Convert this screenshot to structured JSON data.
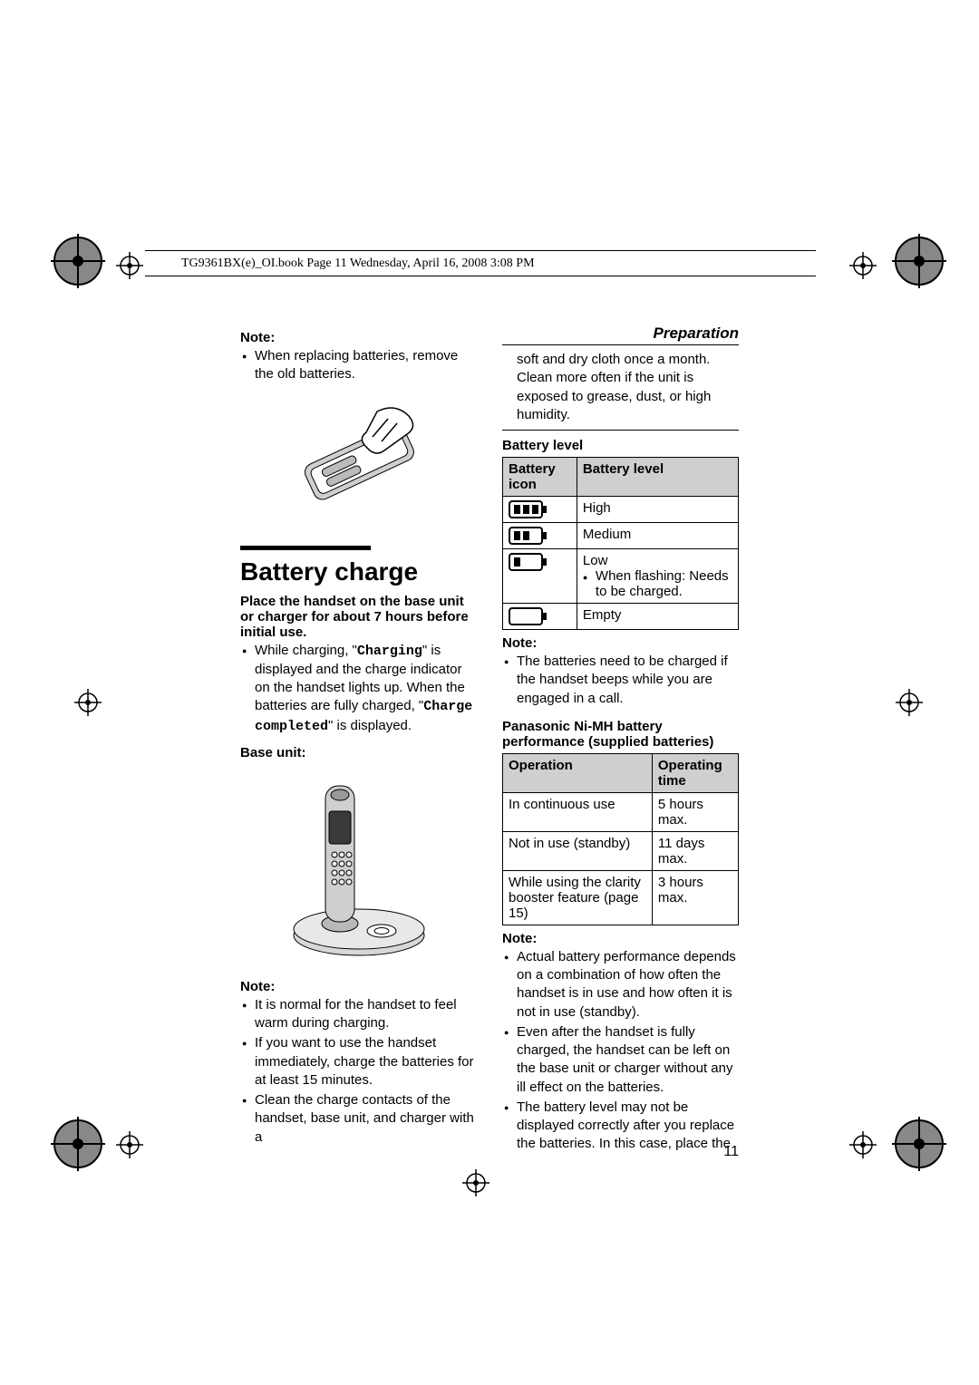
{
  "header": {
    "line": "TG9361BX(e)_OI.book  Page 11  Wednesday, April 16, 2008  3:08 PM"
  },
  "section_title": "Preparation",
  "left": {
    "note1_label": "Note:",
    "note1_items": [
      "When replacing batteries, remove the old batteries."
    ],
    "heading": "Battery charge",
    "intro_bold": "Place the handset on the base unit or charger for about 7 hours before initial use.",
    "charging_prefix": "While charging, \"",
    "charging_code": "Charging",
    "charging_mid": "\" is displayed and the charge indicator on the handset lights up. When the batteries are fully charged, \"",
    "charging_code2": "Charge completed",
    "charging_suffix": "\" is displayed.",
    "base_unit_label": "Base unit:",
    "note2_label": "Note:",
    "note2_items": [
      "It is normal for the handset to feel warm during charging.",
      "If you want to use the handset immediately, charge the batteries for at least 15 minutes.",
      "Clean the charge contacts of the handset, base unit, and charger with a"
    ]
  },
  "right": {
    "carry_over": "soft and dry cloth once a month. Clean more often if the unit is exposed to grease, dust, or high humidity.",
    "battery_level_heading": "Battery level",
    "battery_table": {
      "columns": [
        "Battery icon",
        "Battery level"
      ],
      "rows": [
        {
          "bars": 3,
          "level": "High"
        },
        {
          "bars": 2,
          "level": "Medium"
        },
        {
          "bars": 1,
          "level": "Low",
          "sub": "When flashing: Needs to be charged."
        },
        {
          "bars": 0,
          "level": "Empty"
        }
      ]
    },
    "note3_label": "Note:",
    "note3_items": [
      "The batteries need to be charged if the handset beeps while you are engaged in a call."
    ],
    "perf_heading": "Panasonic Ni-MH battery performance (supplied batteries)",
    "perf_table": {
      "columns": [
        "Operation",
        "Operating time"
      ],
      "rows": [
        {
          "op": "In continuous use",
          "time": "5 hours max."
        },
        {
          "op": "Not in use (standby)",
          "time": "11 days max."
        },
        {
          "op": "While using the clarity booster feature (page 15)",
          "time": "3 hours max."
        }
      ]
    },
    "note4_label": "Note:",
    "note4_items": [
      "Actual battery performance depends on a combination of how often the handset is in use and how often it is not in use (standby).",
      "Even after the handset is fully charged, the handset can be left on the base unit or charger without any ill effect on the batteries.",
      "The battery level may not be displayed correctly after you replace the batteries. In this case, place the"
    ]
  },
  "page_number": "11",
  "colors": {
    "text": "#000000",
    "bg": "#ffffff",
    "table_header_bg": "#cfcfcf",
    "border": "#000000"
  },
  "typography": {
    "body_fontsize_pt": 11,
    "heading_fontsize_pt": 21,
    "section_title_fontsize_pt": 13
  }
}
